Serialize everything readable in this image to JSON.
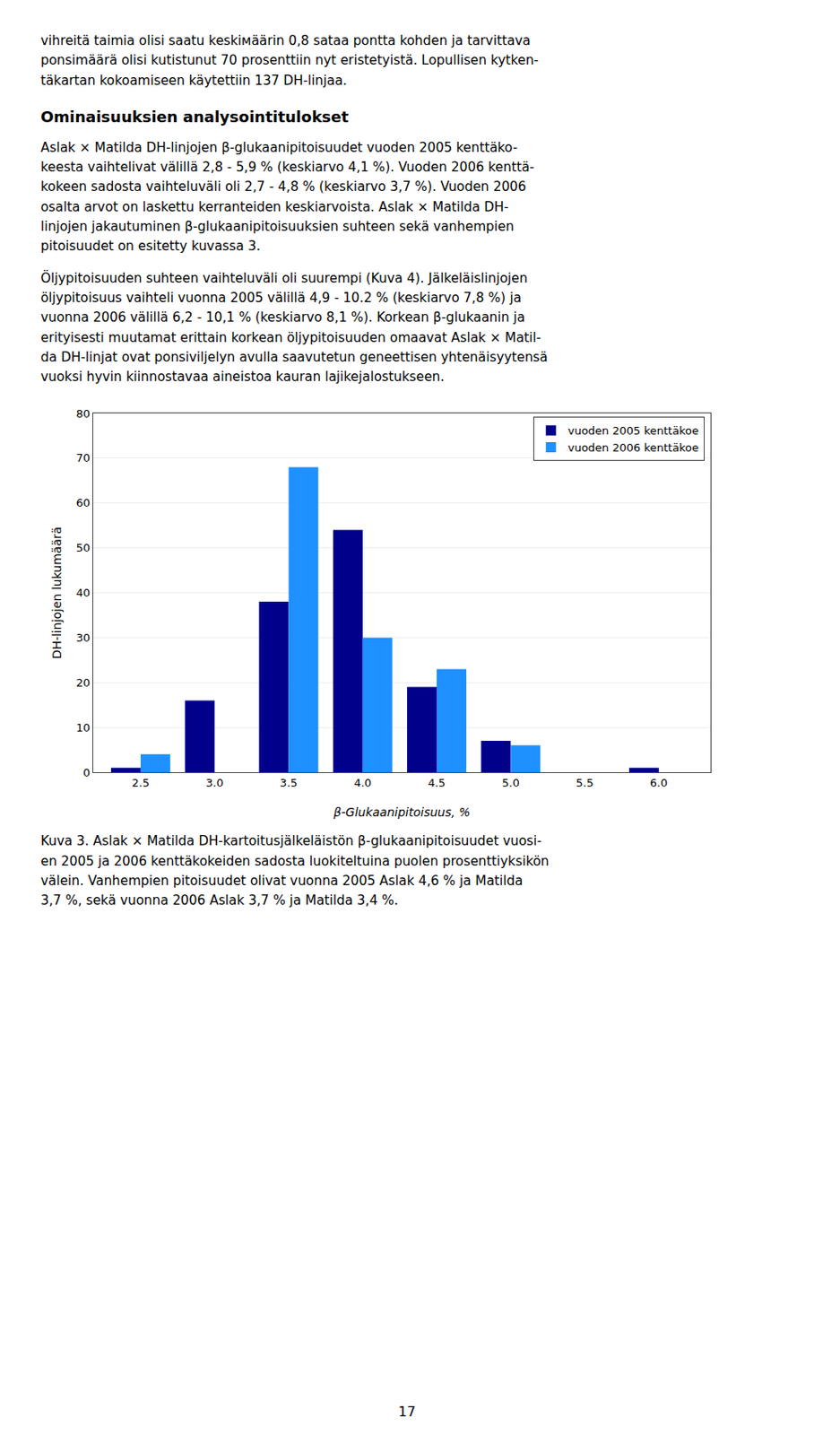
{
  "page_text": {
    "before_heading": [
      "vihreitä taimia olisi saatu keskiмäärin 0,8 sataa pontta kohden ja tarvittava",
      "ponsimäärä olisi kutistunut 70 prosenttiin nyt eristetyistä. Lopullisen kytken-",
      "täkartan kokoamiseen käytettiin 137 DH-linjaa."
    ],
    "heading": "Ominaisuuksien analysointitulokset",
    "after_heading": [
      [
        "Aslak × Matilda DH-linjojen β-glukaanipitoisuudet vuoden 2005 kenttäko-",
        "keesta vaihtelivat välillä 2,8 - 5,9 % (keskiarvo 4,1 %). Vuoden 2006 kenttä-",
        "kokeen sadosta vaihteluväli oli 2,7 - 4,8 % (keskiarvo 3,7 %). Vuoden 2006",
        "osalta arvot on laskettu kerranteiden keskiarvoista. Aslak × Matilda DH-",
        "linjojen jakautuminen β-glukaanipitoisuuksien suhteen sekä vanhempien",
        "pitoisuudet on esitetty kuvassa 3."
      ],
      [
        "Öljypitoisuuden suhteen vaihteluväli oli suurempi (Kuva 4). Jälkeläislinjojen",
        "öljypitoisuus vaihteli vuonna 2005 välillä 4,9 - 10.2 % (keskiarvo 7,8 %) ja",
        "vuonna 2006 välillä 6,2 - 10,1 % (keskiarvo 8,1 %). Korkean β-glukaanin ja",
        "erityisesti muutamat erittain korkean öljypitoisuuden omaavat Aslak × Matil-",
        "da DH-linjat ovat ponsiviljelyn avulla saavutetun geneettisen yhtenäisyytensä",
        "vuoksi hyvin kiinnostavaa aineistoa kauran lajikejalostukseen."
      ]
    ],
    "caption": [
      "Kuva 3. Aslak × Matilda DH-kartoitusjälkeläistön β-glukaanipitoisuudet vuosi-",
      "en 2005 ja 2006 kenttäkokeiden sadosta luokiteltuina puolen prosenttiyksikön",
      "välein. Vanhempien pitoisuudet olivat vuonna 2005 Aslak 4,6 % ja Matilda",
      "3,7 %, sekä vuonna 2006 Aslak 3,7 % ja Matilda 3,4 %."
    ],
    "page_number": "17"
  },
  "chart_data": {
    "type": "bar",
    "x": [
      2.5,
      3.0,
      3.5,
      4.0,
      4.5,
      5.0,
      5.5,
      6.0
    ],
    "series": [
      {
        "name": "vuoden 2005 kenttäkoe",
        "color": "#00008B",
        "values": [
          1,
          16,
          38,
          54,
          19,
          7,
          0,
          1
        ]
      },
      {
        "name": "vuoden 2006 kenttäkoe",
        "color": "#1E90FF",
        "values": [
          4,
          0,
          68,
          30,
          23,
          6,
          0,
          0
        ]
      }
    ],
    "xlabel": "β-Glukaanipitoisuus, %",
    "ylabel": "DH-linjojen lukumäärä",
    "xlim": [
      2.18,
      6.35
    ],
    "xticks": [
      2.5,
      {
        "value": 3,
        "label": "3.0"
      },
      3.5,
      {
        "value": 4,
        "label": "4.0"
      },
      4.5,
      {
        "value": 5,
        "label": "5.0"
      },
      5.5,
      {
        "value": 6,
        "label": "6.0"
      }
    ],
    "ylim": [
      0,
      80
    ],
    "yticks": [
      0,
      10,
      20,
      30,
      40,
      50,
      60,
      70,
      80
    ],
    "grid": true,
    "legend": "upper right"
  }
}
